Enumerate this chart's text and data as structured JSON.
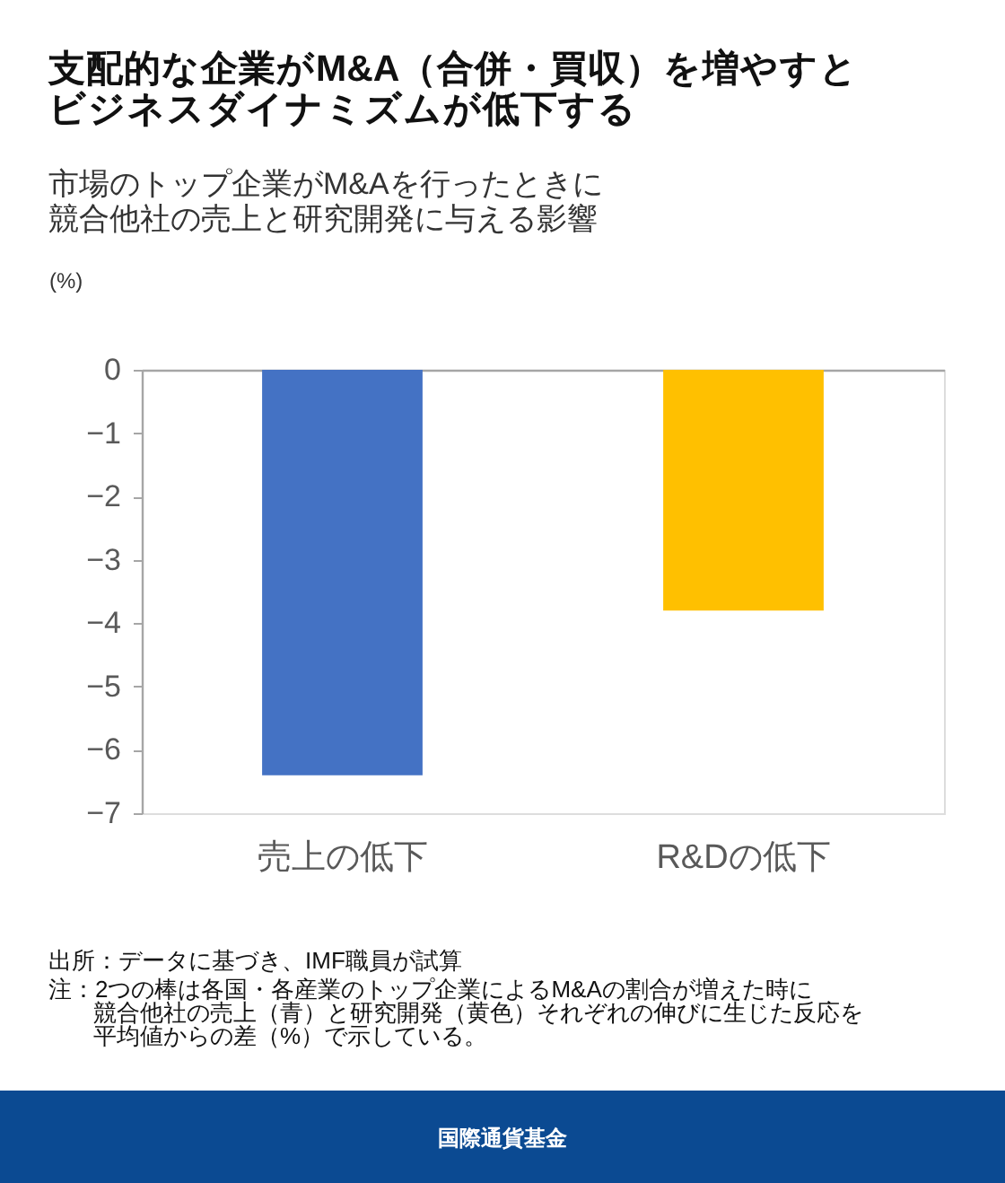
{
  "chart_data": {
    "type": "bar",
    "title": "支配的な企業がM&A（合併・買収）を増やすとビジネスダイナミズムが低下する",
    "subtitle": "市場のトップ企業がM&Aを行ったときに競合他社の売上と研究開発に与える影響",
    "ylabel": "(%)",
    "categories": [
      "売上の低下",
      "R&Dの低下"
    ],
    "values": [
      -6.4,
      -3.8
    ],
    "colors": [
      "#4472c4",
      "#ffc000"
    ],
    "ylim": [
      -7,
      0
    ],
    "yticks": [
      -7,
      -6,
      -5,
      -4,
      -3,
      -2,
      -1,
      0
    ],
    "annotations": [
      "出所：データに基づき、IMF職員が試算",
      "注：2つの棒は各国・各産業のトップ企業によるM&Aの割合が増えた時に競合他社の売上（青）と研究開発（黄色）それぞれの伸びに生じた反応を平均値からの差（%）で示している。",
      "国際通貨基金"
    ]
  }
}
